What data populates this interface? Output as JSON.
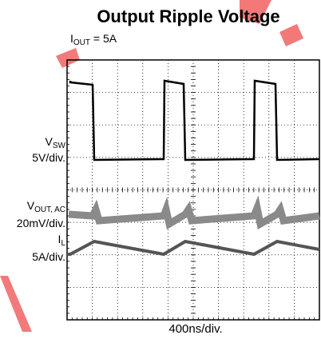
{
  "title": "Output Ripple Voltage",
  "subtitle": {
    "main": "I",
    "sub": "OUT",
    "rest": " = 5A"
  },
  "channels": [
    {
      "name": {
        "main": "V",
        "sub": "SW"
      },
      "scale": "5V/div."
    },
    {
      "name": {
        "main": "V",
        "sub": "OUT, AC"
      },
      "scale": "20mV/div."
    },
    {
      "name": {
        "main": "I",
        "sub": "L"
      },
      "scale": "5A/div."
    }
  ],
  "timebase": "400ns/div."
}
